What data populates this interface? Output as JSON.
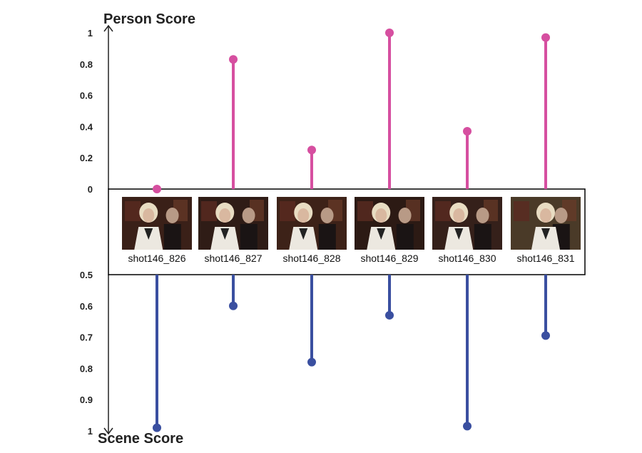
{
  "chart_data": {
    "type": "lollipop",
    "colors": {
      "person": "#d64fa0",
      "scene": "#3a4fa0",
      "axis": "#222222",
      "frame": "#000000"
    },
    "person_axis": {
      "title": "Person Score",
      "ylim": [
        0,
        1
      ],
      "ticks": [
        {
          "value": 0,
          "label": "0"
        },
        {
          "value": 0.2,
          "label": "0.2"
        },
        {
          "value": 0.4,
          "label": "0.4"
        },
        {
          "value": 0.6,
          "label": "0.6"
        },
        {
          "value": 0.8,
          "label": "0.8"
        },
        {
          "value": 1,
          "label": "1"
        }
      ]
    },
    "scene_axis": {
      "title": "Scene Score",
      "ylim": [
        0.5,
        1
      ],
      "ticks": [
        {
          "value": 0.5,
          "label": "0.5"
        },
        {
          "value": 0.6,
          "label": "0.6"
        },
        {
          "value": 0.7,
          "label": "0.7"
        },
        {
          "value": 0.8,
          "label": "0.8"
        },
        {
          "value": 0.9,
          "label": "0.9"
        },
        {
          "value": 1,
          "label": "1"
        }
      ]
    },
    "categories": [
      "shot146_826",
      "shot146_827",
      "shot146_828",
      "shot146_829",
      "shot146_830",
      "shot146_831"
    ],
    "series": [
      {
        "values": [
          0.0,
          0.83,
          0.25,
          1.0,
          0.37,
          0.97
        ]
      },
      {
        "values": [
          0.99,
          0.6,
          0.78,
          0.63,
          0.985,
          0.695
        ]
      }
    ]
  }
}
